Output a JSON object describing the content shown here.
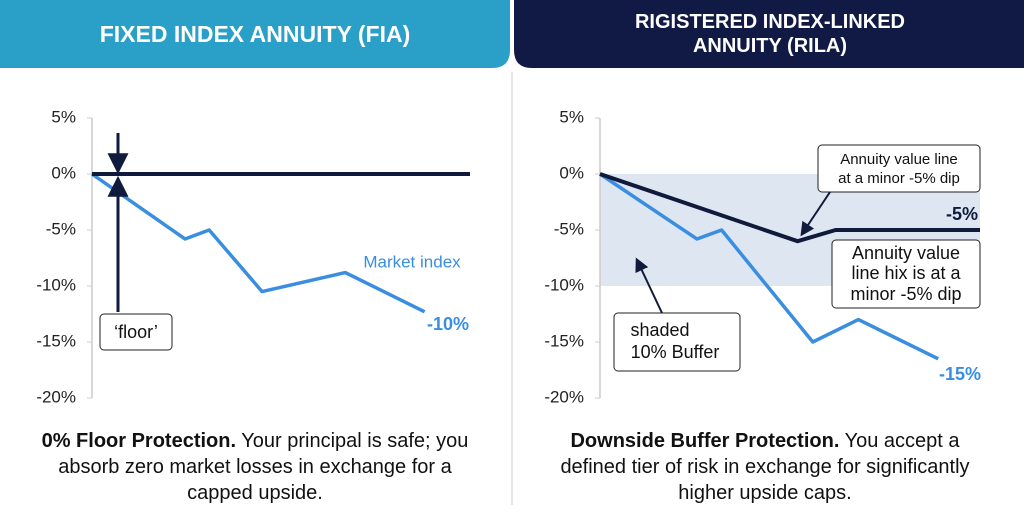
{
  "chart_data": [
    {
      "type": "line",
      "header": "FIXED INDEX ANNUITY (FIA)",
      "caption_bold": "0% Floor Protection.",
      "caption": "Your principal is safe; you absorb zero market losses in exchange for a capped upside.",
      "xlim": [
        0,
        100
      ],
      "ylim": [
        -20,
        5
      ],
      "yticks": [
        {
          "value": 5,
          "label": "5%"
        },
        {
          "value": 0,
          "label": "0%"
        },
        {
          "value": -5,
          "label": "-5%"
        },
        {
          "value": -10,
          "label": "-10%"
        },
        {
          "value": -15,
          "label": "-15%"
        },
        {
          "value": -20,
          "label": "-20%"
        }
      ],
      "series": [
        {
          "name": "Market index",
          "color": "#3a8ee0",
          "x": [
            0,
            24.6,
            31,
            45,
            67,
            88
          ],
          "values": [
            0,
            -5.8,
            -5,
            -10.5,
            -8.8,
            -12.3
          ]
        },
        {
          "name": "Annuity",
          "color": "#0f1a3c",
          "x": [
            0,
            100
          ],
          "values": [
            0,
            0
          ]
        }
      ],
      "annotations": [
        {
          "lines": [
            "-10%"
          ]
        },
        {
          "lines": [
            "‘floor’"
          ]
        }
      ]
    },
    {
      "type": "line",
      "header": "RIGISTERED INDEX-LINKED ANNUITY (RILA)",
      "caption_bold": "Downside Buffer Protection.",
      "caption": "You accept a defined tier of risk in exchange for significantly higher upside caps.",
      "xlim": [
        0,
        100
      ],
      "ylim": [
        -20,
        5
      ],
      "yticks": [
        {
          "value": 5,
          "label": "5%"
        },
        {
          "value": 0,
          "label": "0%"
        },
        {
          "value": -5,
          "label": "-5%"
        },
        {
          "value": -10,
          "label": "-10%"
        },
        {
          "value": -15,
          "label": "-15%"
        },
        {
          "value": -20,
          "label": "-20%"
        }
      ],
      "buffer": [
        0,
        -10
      ],
      "series": [
        {
          "name": "Market index",
          "color": "#3a8ee0",
          "x": [
            0,
            25.5,
            32,
            56,
            68,
            89
          ],
          "values": [
            0,
            -5.8,
            -5,
            -15,
            -13,
            -16.5
          ]
        },
        {
          "name": "Annuity",
          "color": "#0f1a3c",
          "x": [
            0,
            52,
            62,
            100
          ],
          "values": [
            0,
            -6,
            -5,
            -5
          ]
        }
      ],
      "annotations": [
        {
          "lines": [
            "-5%"
          ]
        },
        {
          "lines": [
            "-15%"
          ]
        },
        {
          "lines": [
            "Annuity value line",
            "at a minor -5% dip"
          ]
        },
        {
          "lines": [
            "Annuity value",
            "line hix is at a",
            "minor -5% dip"
          ]
        },
        {
          "lines": [
            "shaded",
            "10% Buffer"
          ]
        }
      ]
    }
  ]
}
